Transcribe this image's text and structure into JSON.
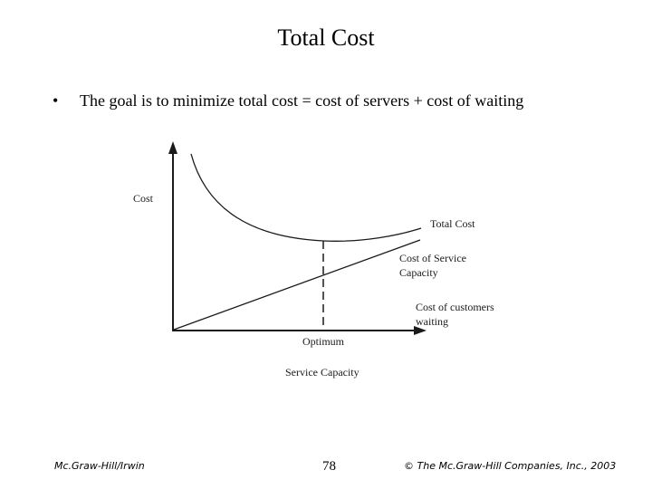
{
  "slide": {
    "title": "Total Cost",
    "bullet": "The goal is to minimize total cost = cost of servers + cost of waiting"
  },
  "diagram": {
    "y_axis_label": "Cost",
    "x_axis_label": "Service Capacity",
    "optimum_label": "Optimum",
    "curve_labels": {
      "total_cost": "Total Cost",
      "service_capacity_line1": "Cost of Service",
      "service_capacity_line2": "Capacity",
      "waiting_line1": "Cost of customers",
      "waiting_line2": "waiting"
    }
  },
  "footer": {
    "left": "Mc.Graw-Hill/Irwin",
    "page": "78",
    "right": "© The Mc.Graw-Hill Companies, Inc., 2003"
  }
}
